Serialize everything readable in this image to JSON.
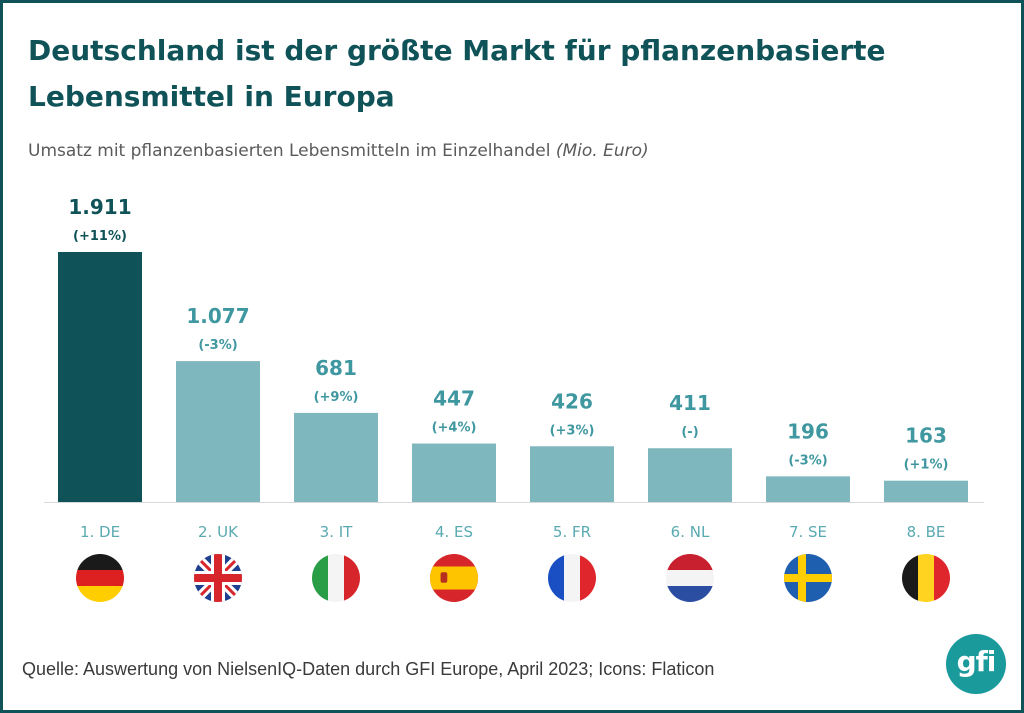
{
  "title": "Deutschland ist der größte Markt für pflanzenbasierte Lebensmittel in Europa",
  "subtitle": {
    "text": "Umsatz mit pflanzenbasierten Lebensmitteln im Einzelhandel",
    "unit": "(Mio. Euro)"
  },
  "source": "Quelle: Auswertung von NielsenIQ-Daten durch GFI Europe, April 2023; Icons: Flaticon",
  "logo": {
    "text": "gfi"
  },
  "colors": {
    "highlight": "#0f5258",
    "bar": "#7fb7be",
    "accent": "#1a9a9a"
  },
  "chart_data": {
    "type": "bar",
    "title": "Deutschland ist der größte Markt für pflanzenbasierte Lebensmittel in Europa",
    "subtitle": "Umsatz mit pflanzenbasierten Lebensmitteln im Einzelhandel (Mio. Euro)",
    "categories": [
      "1. DE",
      "2. UK",
      "3. IT",
      "4. ES",
      "5. FR",
      "6. NL",
      "7. SE",
      "8. BE"
    ],
    "values": [
      1911,
      1077,
      681,
      447,
      426,
      411,
      196,
      163
    ],
    "value_labels": [
      "1.911",
      "1.077",
      "681",
      "447",
      "426",
      "411",
      "196",
      "163"
    ],
    "change_labels": [
      "(+11%)",
      "(-3%)",
      "(+9%)",
      "(+4%)",
      "(+3%)",
      "(-)",
      "(-3%)",
      "(+1%)"
    ],
    "highlight_index": 0,
    "flags": [
      "germany-flag-icon",
      "uk-flag-icon",
      "italy-flag-icon",
      "spain-flag-icon",
      "france-flag-icon",
      "netherlands-flag-icon",
      "sweden-flag-icon",
      "belgium-flag-icon"
    ],
    "ylim": [
      0,
      1911
    ],
    "grid": false,
    "legend": "none"
  }
}
